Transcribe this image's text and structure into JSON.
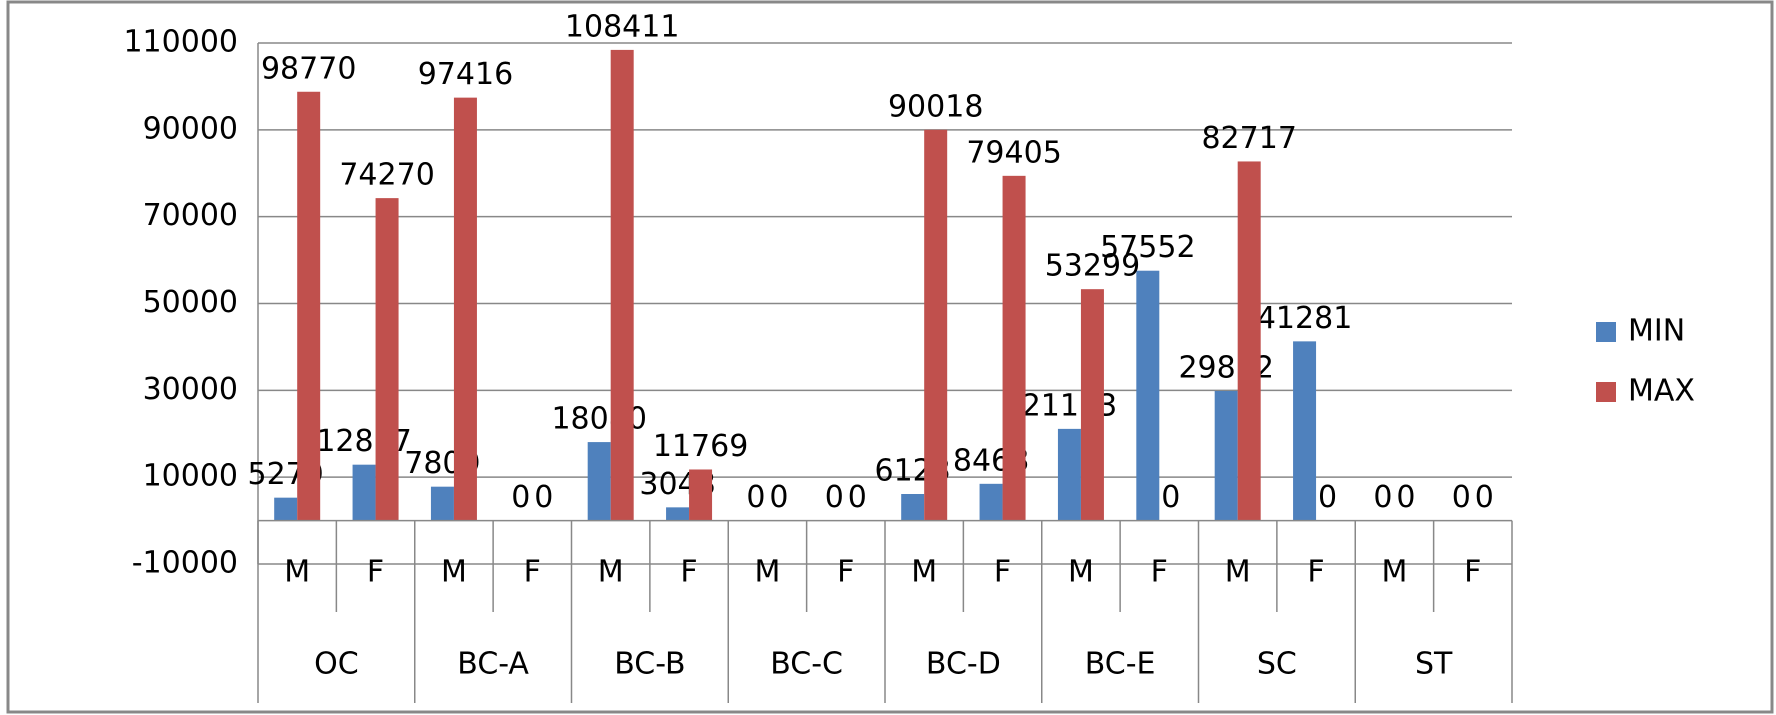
{
  "chart_data": {
    "type": "bar",
    "categories": [
      "M",
      "F",
      "M",
      "F",
      "M",
      "F",
      "M",
      "F",
      "M",
      "F",
      "M",
      "F",
      "M",
      "F",
      "M",
      "F"
    ],
    "groups": [
      "OC",
      "BC-A",
      "BC-B",
      "BC-C",
      "BC-D",
      "BC-E",
      "SC",
      "ST"
    ],
    "series": [
      {
        "name": "MIN",
        "color": "#4f81bd",
        "values": [
          5279,
          12877,
          7809,
          0,
          18080,
          3048,
          0,
          0,
          6123,
          8468,
          21123,
          57552,
          29852,
          41281,
          0,
          0
        ]
      },
      {
        "name": "MAX",
        "color": "#c0504d",
        "values": [
          98770,
          74270,
          97416,
          0,
          108411,
          11769,
          0,
          0,
          90018,
          79405,
          53299,
          0,
          82717,
          0,
          0,
          0
        ]
      }
    ],
    "ylim": [
      -10000,
      110000
    ],
    "yticks": [
      -10000,
      10000,
      30000,
      50000,
      70000,
      90000,
      110000
    ],
    "grid": true,
    "legend": "right"
  }
}
